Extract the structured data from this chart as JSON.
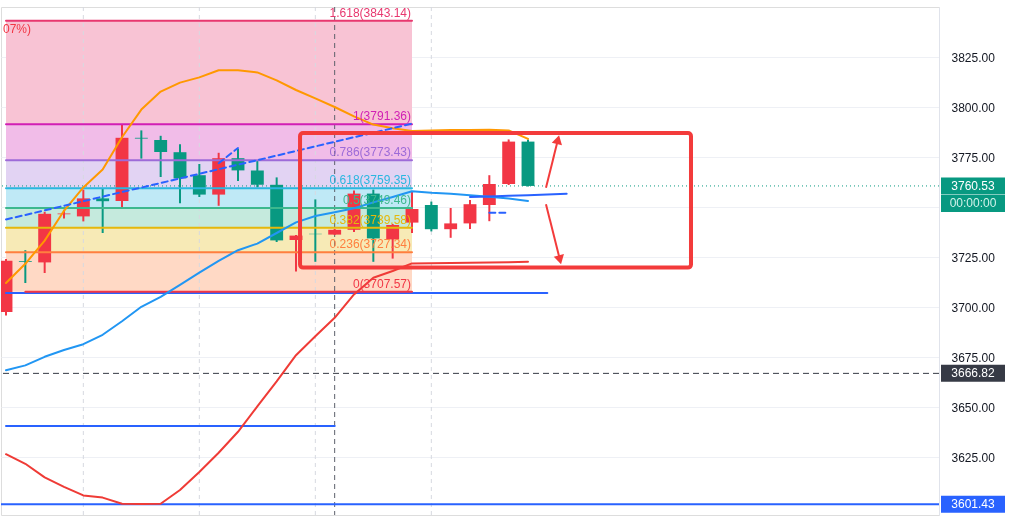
{
  "chart_data": {
    "type": "candlestick",
    "categories": [
      null,
      null,
      null,
      null,
      null,
      null,
      null,
      null,
      null,
      null,
      null,
      null,
      null,
      null,
      null,
      null,
      null,
      null,
      null,
      null,
      null,
      null,
      null,
      null,
      null,
      null,
      null,
      null,
      null,
      null,
      null,
      null,
      null,
      null,
      null,
      null,
      null,
      null,
      null,
      null,
      null,
      null,
      null,
      null,
      null,
      null,
      null,
      null,
      null
    ],
    "ohlc": [
      [
        3697.5,
        3724.0,
        3695.7,
        3723.1
      ],
      [
        3723.0,
        3728.4,
        3712.0,
        3722.6
      ],
      [
        3722.3,
        3747.6,
        3717.0,
        3746.6
      ],
      [
        3746.4,
        3748.6,
        3744.2,
        3746.8
      ],
      [
        3745.3,
        3758.7,
        3742.8,
        3754.3
      ],
      [
        3754.3,
        3759.1,
        3737.0,
        3752.9
      ],
      [
        3753.0,
        3791.36,
        3749.0,
        3784.6
      ],
      [
        3784.6,
        3788.3,
        3774.2,
        3784.2
      ],
      [
        3783.5,
        3785.6,
        3765.0,
        3777.5
      ],
      [
        3777.4,
        3781.4,
        3751.9,
        3764.3
      ],
      [
        3765.9,
        3771.5,
        3755.0,
        3756.2
      ],
      [
        3756.2,
        3777.1,
        3750.6,
        3774.4
      ],
      [
        3774.4,
        3779.0,
        3763.0,
        3768.3
      ],
      [
        3768.3,
        3773.1,
        3759.8,
        3761.1
      ],
      [
        3761.1,
        3764.8,
        3732.5,
        3733.3
      ],
      [
        3733.5,
        3736.0,
        3717.8,
        3735.7
      ],
      [
        3736.6,
        3753.8,
        3722.6,
        3736.4
      ],
      [
        3736.2,
        3739.0,
        3736.0,
        3738.6
      ],
      [
        3738.6,
        3758.2,
        3737.5,
        3756.7
      ],
      [
        3756.7,
        3758.7,
        3722.6,
        3734.3
      ],
      [
        3733.8,
        3741.5,
        3724.2,
        3741.0
      ],
      [
        3742.2,
        3757.8,
        3737.0,
        3749.0
      ],
      [
        3751.0,
        3752.7,
        3737.8,
        3738.9
      ],
      [
        3738.9,
        3749.5,
        3734.6,
        3741.8
      ],
      [
        3741.8,
        3753.5,
        3739.0,
        3751.4
      ],
      [
        3751.0,
        3765.9,
        3742.9,
        3761.5
      ],
      [
        3761.5,
        3783.8,
        3761.0,
        3782.7
      ],
      [
        3782.7,
        3783.8,
        3760.3,
        3760.53
      ],
      null,
      null,
      null,
      null,
      null,
      null,
      null,
      null,
      null,
      null,
      null,
      null,
      null,
      null,
      null,
      null,
      null,
      null,
      null,
      null,
      null
    ],
    "colors": [
      "#f23645",
      "#089981",
      "#f23645",
      "#f23645",
      "#f23645",
      "#089981",
      "#f23645",
      "#089981",
      "#089981",
      "#089981",
      "#089981",
      "#f23645",
      "#089981",
      "#089981",
      "#089981",
      "#f23645",
      "#089981",
      "#f23645",
      "#f23645",
      "#089981",
      "#f23645",
      "#f23645",
      "#089981",
      "#f23645",
      "#f23645",
      "#f23645",
      "#f23645",
      "#089981",
      null,
      null,
      null,
      null,
      null,
      null,
      null,
      null,
      null,
      null,
      null,
      null,
      null,
      null,
      null,
      null,
      null,
      null,
      null,
      null,
      null
    ],
    "ylim": [
      3596,
      3850
    ],
    "yticks": [
      {
        "value": 3625,
        "label": "3625.00"
      },
      {
        "value": 3650,
        "label": "3650.00"
      },
      {
        "value": 3675,
        "label": "3675.00"
      },
      {
        "value": 3700,
        "label": "3700.00"
      },
      {
        "value": 3725,
        "label": "3725.00"
      },
      {
        "value": 3750,
        "label": null
      },
      {
        "value": 3775,
        "label": "3775.00"
      },
      {
        "value": 3800,
        "label": "3800.00"
      },
      {
        "value": 3825,
        "label": "3825.00"
      }
    ],
    "grid": true,
    "tick_labels": "y",
    "series": [
      {
        "type": "line",
        "color": "#2962ff",
        "values": [
          3640.5,
          3640.5,
          3640.5,
          3640.5,
          3640.5,
          3640.5,
          3640.5,
          3640.5,
          3640.5,
          3640.5,
          3640.5,
          3640.5,
          3640.5,
          3640.5,
          3640.5,
          3640.5,
          3640.5,
          3640.5,
          null,
          null,
          null,
          null,
          null,
          null,
          null,
          null,
          null,
          null,
          null,
          null,
          null,
          null,
          null,
          null,
          null,
          null,
          null,
          null,
          null,
          null,
          null,
          null,
          null,
          null,
          null,
          null,
          null,
          null,
          null
        ]
      },
      {
        "type": "line",
        "color": "#2962ff",
        "values": [
          3707.0,
          3707.0,
          3707.0,
          3707.0,
          3707.0,
          3707.0,
          3707.0,
          3707.0,
          3707.0,
          3707.0,
          3707.0,
          3707.0,
          3707.0,
          3707.0,
          3707.0,
          3707.0,
          3707.0,
          3707.0,
          3707.0,
          3707.0,
          3707.0,
          3707.0,
          3707.0,
          3707.0,
          3707.0,
          3707.0,
          3707.0,
          3707.0,
          3707.0,
          null,
          null,
          null,
          null,
          null,
          null,
          null,
          null,
          null,
          null,
          null,
          null,
          null,
          null,
          null,
          null,
          null,
          null,
          null,
          null
        ]
      },
      {
        "type": "line",
        "name": "0(3707.57)",
        "color": "#f23645",
        "values": [
          null,
          3707.57,
          3707.57,
          3707.57,
          3707.57,
          3707.57,
          3707.57,
          3707.57,
          3707.57,
          3707.57,
          3707.57,
          3707.57,
          3707.57,
          3707.57,
          3707.57,
          3707.57,
          3707.57,
          3707.57,
          3707.57,
          3707.57,
          3707.57,
          3707.57,
          null,
          null,
          null,
          null,
          null,
          null,
          null,
          null,
          null,
          null,
          null,
          null,
          null,
          null,
          null,
          null,
          null,
          null,
          null,
          null,
          null,
          null,
          null,
          null,
          null,
          null,
          null
        ]
      },
      {
        "type": "line",
        "name": "0.236(3727.34)",
        "color": "#ff7f3f",
        "values": [
          3727.34,
          3727.34,
          3727.34,
          3727.34,
          3727.34,
          3727.34,
          3727.34,
          3727.34,
          3727.34,
          3727.34,
          3727.34,
          3727.34,
          3727.34,
          3727.34,
          3727.34,
          3727.34,
          3727.34,
          3727.34,
          3727.34,
          3727.34,
          3727.34,
          3727.34,
          null,
          null,
          null,
          null,
          null,
          null,
          null,
          null,
          null,
          null,
          null,
          null,
          null,
          null,
          null,
          null,
          null,
          null,
          null,
          null,
          null,
          null,
          null,
          null,
          null,
          null,
          null
        ],
        "lower": [
          3707.57,
          3707.57,
          3707.57,
          3707.57,
          3707.57,
          3707.57,
          3707.57,
          3707.57,
          3707.57,
          3707.57,
          3707.57,
          3707.57,
          3707.57,
          3707.57,
          3707.57,
          3707.57,
          3707.57,
          3707.57,
          3707.57,
          3707.57,
          3707.57,
          3707.57,
          null,
          null,
          null,
          null,
          null,
          null,
          null,
          null,
          null,
          null,
          null,
          null,
          null,
          null,
          null,
          null,
          null,
          null,
          null,
          null,
          null,
          null,
          null,
          null,
          null,
          null,
          null
        ],
        "upper": [
          3727.34,
          3727.34,
          3727.34,
          3727.34,
          3727.34,
          3727.34,
          3727.34,
          3727.34,
          3727.34,
          3727.34,
          3727.34,
          3727.34,
          3727.34,
          3727.34,
          3727.34,
          3727.34,
          3727.34,
          3727.34,
          3727.34,
          3727.34,
          3727.34,
          3727.34,
          null,
          null,
          null,
          null,
          null,
          null,
          null,
          null,
          null,
          null,
          null,
          null,
          null,
          null,
          null,
          null,
          null,
          null,
          null,
          null,
          null,
          null,
          null,
          null,
          null,
          null,
          null
        ]
      },
      {
        "type": "line",
        "name": "0.382(3739.58)",
        "color": "#e5b80b",
        "values": [
          3739.58,
          3739.58,
          3739.58,
          3739.58,
          3739.58,
          3739.58,
          3739.58,
          3739.58,
          3739.58,
          3739.58,
          3739.58,
          3739.58,
          3739.58,
          3739.58,
          3739.58,
          3739.58,
          3739.58,
          3739.58,
          3739.58,
          3739.58,
          3739.58,
          3739.58,
          null,
          null,
          null,
          null,
          null,
          null,
          null,
          null,
          null,
          null,
          null,
          null,
          null,
          null,
          null,
          null,
          null,
          null,
          null,
          null,
          null,
          null,
          null,
          null,
          null,
          null,
          null
        ],
        "lower": [
          3727.34,
          3727.34,
          3727.34,
          3727.34,
          3727.34,
          3727.34,
          3727.34,
          3727.34,
          3727.34,
          3727.34,
          3727.34,
          3727.34,
          3727.34,
          3727.34,
          3727.34,
          3727.34,
          3727.34,
          3727.34,
          3727.34,
          3727.34,
          3727.34,
          3727.34,
          null,
          null,
          null,
          null,
          null,
          null,
          null,
          null,
          null,
          null,
          null,
          null,
          null,
          null,
          null,
          null,
          null,
          null,
          null,
          null,
          null,
          null,
          null,
          null,
          null,
          null,
          null
        ],
        "upper": [
          3739.58,
          3739.58,
          3739.58,
          3739.58,
          3739.58,
          3739.58,
          3739.58,
          3739.58,
          3739.58,
          3739.58,
          3739.58,
          3739.58,
          3739.58,
          3739.58,
          3739.58,
          3739.58,
          3739.58,
          3739.58,
          3739.58,
          3739.58,
          3739.58,
          3739.58,
          null,
          null,
          null,
          null,
          null,
          null,
          null,
          null,
          null,
          null,
          null,
          null,
          null,
          null,
          null,
          null,
          null,
          null,
          null,
          null,
          null,
          null,
          null,
          null,
          null,
          null,
          null
        ]
      },
      {
        "type": "line",
        "name": "0.5(3749.46)",
        "color": "#3db88e",
        "values": [
          3749.46,
          3749.46,
          3749.46,
          3749.46,
          3749.46,
          3749.46,
          3749.46,
          3749.46,
          3749.46,
          3749.46,
          3749.46,
          3749.46,
          3749.46,
          3749.46,
          3749.46,
          3749.46,
          3749.46,
          3749.46,
          3749.46,
          3749.46,
          3749.46,
          3749.46,
          null,
          null,
          null,
          null,
          null,
          null,
          null,
          null,
          null,
          null,
          null,
          null,
          null,
          null,
          null,
          null,
          null,
          null,
          null,
          null,
          null,
          null,
          null,
          null,
          null,
          null,
          null
        ],
        "lower": [
          3739.58,
          3739.58,
          3739.58,
          3739.58,
          3739.58,
          3739.58,
          3739.58,
          3739.58,
          3739.58,
          3739.58,
          3739.58,
          3739.58,
          3739.58,
          3739.58,
          3739.58,
          3739.58,
          3739.58,
          3739.58,
          3739.58,
          3739.58,
          3739.58,
          3739.58,
          null,
          null,
          null,
          null,
          null,
          null,
          null,
          null,
          null,
          null,
          null,
          null,
          null,
          null,
          null,
          null,
          null,
          null,
          null,
          null,
          null,
          null,
          null,
          null,
          null,
          null,
          null
        ],
        "upper": [
          3749.46,
          3749.46,
          3749.46,
          3749.46,
          3749.46,
          3749.46,
          3749.46,
          3749.46,
          3749.46,
          3749.46,
          3749.46,
          3749.46,
          3749.46,
          3749.46,
          3749.46,
          3749.46,
          3749.46,
          3749.46,
          3749.46,
          3749.46,
          3749.46,
          3749.46,
          null,
          null,
          null,
          null,
          null,
          null,
          null,
          null,
          null,
          null,
          null,
          null,
          null,
          null,
          null,
          null,
          null,
          null,
          null,
          null,
          null,
          null,
          null,
          null,
          null,
          null,
          null
        ]
      },
      {
        "type": "line",
        "name": "0.618(3759.35)",
        "color": "#2ab7e0",
        "values": [
          3759.35,
          3759.35,
          3759.35,
          3759.35,
          3759.35,
          3759.35,
          3759.35,
          3759.35,
          3759.35,
          3759.35,
          3759.35,
          3759.35,
          3759.35,
          3759.35,
          3759.35,
          3759.35,
          3759.35,
          3759.35,
          3759.35,
          3759.35,
          3759.35,
          3759.35,
          null,
          null,
          null,
          null,
          null,
          null,
          null,
          null,
          null,
          null,
          null,
          null,
          null,
          null,
          null,
          null,
          null,
          null,
          null,
          null,
          null,
          null,
          null,
          null,
          null,
          null,
          null
        ],
        "lower": [
          3749.46,
          3749.46,
          3749.46,
          3749.46,
          3749.46,
          3749.46,
          3749.46,
          3749.46,
          3749.46,
          3749.46,
          3749.46,
          3749.46,
          3749.46,
          3749.46,
          3749.46,
          3749.46,
          3749.46,
          3749.46,
          3749.46,
          3749.46,
          3749.46,
          3749.46,
          null,
          null,
          null,
          null,
          null,
          null,
          null,
          null,
          null,
          null,
          null,
          null,
          null,
          null,
          null,
          null,
          null,
          null,
          null,
          null,
          null,
          null,
          null,
          null,
          null,
          null,
          null
        ],
        "upper": [
          3759.35,
          3759.35,
          3759.35,
          3759.35,
          3759.35,
          3759.35,
          3759.35,
          3759.35,
          3759.35,
          3759.35,
          3759.35,
          3759.35,
          3759.35,
          3759.35,
          3759.35,
          3759.35,
          3759.35,
          3759.35,
          3759.35,
          3759.35,
          3759.35,
          3759.35,
          null,
          null,
          null,
          null,
          null,
          null,
          null,
          null,
          null,
          null,
          null,
          null,
          null,
          null,
          null,
          null,
          null,
          null,
          null,
          null,
          null,
          null,
          null,
          null,
          null,
          null,
          null
        ]
      },
      {
        "type": "line",
        "name": "0.786(3773.43)",
        "color": "#9d6bd8",
        "values": [
          3773.43,
          3773.43,
          3773.43,
          3773.43,
          3773.43,
          3773.43,
          3773.43,
          3773.43,
          3773.43,
          3773.43,
          3773.43,
          3773.43,
          3773.43,
          3773.43,
          3773.43,
          3773.43,
          3773.43,
          3773.43,
          3773.43,
          3773.43,
          3773.43,
          3773.43,
          null,
          null,
          null,
          null,
          null,
          null,
          null,
          null,
          null,
          null,
          null,
          null,
          null,
          null,
          null,
          null,
          null,
          null,
          null,
          null,
          null,
          null,
          null,
          null,
          null,
          null,
          null
        ],
        "lower": [
          3759.35,
          3759.35,
          3759.35,
          3759.35,
          3759.35,
          3759.35,
          3759.35,
          3759.35,
          3759.35,
          3759.35,
          3759.35,
          3759.35,
          3759.35,
          3759.35,
          3759.35,
          3759.35,
          3759.35,
          3759.35,
          3759.35,
          3759.35,
          3759.35,
          3759.35,
          null,
          null,
          null,
          null,
          null,
          null,
          null,
          null,
          null,
          null,
          null,
          null,
          null,
          null,
          null,
          null,
          null,
          null,
          null,
          null,
          null,
          null,
          null,
          null,
          null,
          null,
          null
        ],
        "upper": [
          3773.43,
          3773.43,
          3773.43,
          3773.43,
          3773.43,
          3773.43,
          3773.43,
          3773.43,
          3773.43,
          3773.43,
          3773.43,
          3773.43,
          3773.43,
          3773.43,
          3773.43,
          3773.43,
          3773.43,
          3773.43,
          3773.43,
          3773.43,
          3773.43,
          3773.43,
          null,
          null,
          null,
          null,
          null,
          null,
          null,
          null,
          null,
          null,
          null,
          null,
          null,
          null,
          null,
          null,
          null,
          null,
          null,
          null,
          null,
          null,
          null,
          null,
          null,
          null,
          null
        ]
      },
      {
        "type": "line",
        "name": "1(3791.36)",
        "color": "#d11fb4",
        "values": [
          3791.36,
          3791.36,
          3791.36,
          3791.36,
          3791.36,
          3791.36,
          3791.36,
          3791.36,
          3791.36,
          3791.36,
          3791.36,
          3791.36,
          3791.36,
          3791.36,
          3791.36,
          3791.36,
          3791.36,
          3791.36,
          3791.36,
          3791.36,
          3791.36,
          3791.36,
          null,
          null,
          null,
          null,
          null,
          null,
          null,
          null,
          null,
          null,
          null,
          null,
          null,
          null,
          null,
          null,
          null,
          null,
          null,
          null,
          null,
          null,
          null,
          null,
          null,
          null,
          null
        ],
        "lower": [
          3773.43,
          3773.43,
          3773.43,
          3773.43,
          3773.43,
          3773.43,
          3773.43,
          3773.43,
          3773.43,
          3773.43,
          3773.43,
          3773.43,
          3773.43,
          3773.43,
          3773.43,
          3773.43,
          3773.43,
          3773.43,
          3773.43,
          3773.43,
          3773.43,
          3773.43,
          null,
          null,
          null,
          null,
          null,
          null,
          null,
          null,
          null,
          null,
          null,
          null,
          null,
          null,
          null,
          null,
          null,
          null,
          null,
          null,
          null,
          null,
          null,
          null,
          null,
          null,
          null
        ],
        "upper": [
          3791.36,
          3791.36,
          3791.36,
          3791.36,
          3791.36,
          3791.36,
          3791.36,
          3791.36,
          3791.36,
          3791.36,
          3791.36,
          3791.36,
          3791.36,
          3791.36,
          3791.36,
          3791.36,
          3791.36,
          3791.36,
          3791.36,
          3791.36,
          3791.36,
          3791.36,
          null,
          null,
          null,
          null,
          null,
          null,
          null,
          null,
          null,
          null,
          null,
          null,
          null,
          null,
          null,
          null,
          null,
          null,
          null,
          null,
          null,
          null,
          null,
          null,
          null,
          null,
          null
        ]
      },
      {
        "type": "line",
        "name": "1.618(3843.14)",
        "color": "#e8386f",
        "values": [
          3843.14,
          3843.14,
          3843.14,
          3843.14,
          3843.14,
          3843.14,
          3843.14,
          3843.14,
          3843.14,
          3843.14,
          3843.14,
          3843.14,
          3843.14,
          3843.14,
          3843.14,
          3843.14,
          3843.14,
          3843.14,
          3843.14,
          3843.14,
          3843.14,
          3843.14,
          null,
          null,
          null,
          null,
          null,
          null,
          null,
          null,
          null,
          null,
          null,
          null,
          null,
          null,
          null,
          null,
          null,
          null,
          null,
          null,
          null,
          null,
          null,
          null,
          null,
          null,
          null
        ],
        "lower": [
          3791.36,
          3791.36,
          3791.36,
          3791.36,
          3791.36,
          3791.36,
          3791.36,
          3791.36,
          3791.36,
          3791.36,
          3791.36,
          3791.36,
          3791.36,
          3791.36,
          3791.36,
          3791.36,
          3791.36,
          3791.36,
          3791.36,
          3791.36,
          3791.36,
          3791.36,
          null,
          null,
          null,
          null,
          null,
          null,
          null,
          null,
          null,
          null,
          null,
          null,
          null,
          null,
          null,
          null,
          null,
          null,
          null,
          null,
          null,
          null,
          null,
          null,
          null,
          null,
          null
        ],
        "upper": [
          3843.14,
          3843.14,
          3843.14,
          3843.14,
          3843.14,
          3843.14,
          3843.14,
          3843.14,
          3843.14,
          3843.14,
          3843.14,
          3843.14,
          3843.14,
          3843.14,
          3843.14,
          3843.14,
          3843.14,
          3843.14,
          3843.14,
          3843.14,
          3843.14,
          3843.14,
          null,
          null,
          null,
          null,
          null,
          null,
          null,
          null,
          null,
          null,
          null,
          null,
          null,
          null,
          null,
          null,
          null,
          null,
          null,
          null,
          null,
          null,
          null,
          null,
          null,
          null,
          null
        ]
      },
      {
        "type": "line",
        "color": "#ff9800",
        "values": [
          3712.0,
          3721.6,
          3733.2,
          3748.1,
          3759.8,
          3768.7,
          3784.9,
          3798.7,
          3807.7,
          3812.2,
          3814.8,
          3818.4,
          3818.4,
          3817.3,
          3813.3,
          3808.5,
          3804.3,
          3800.0,
          3795.3,
          3791.2,
          3789.4,
          3788.0,
          3788.3,
          3788.5,
          3788.5,
          3788.6,
          3788.3,
          3784.1,
          null,
          null,
          null,
          null,
          null,
          null,
          null,
          null,
          null,
          null,
          null,
          null,
          null,
          null,
          null,
          null,
          null,
          null,
          null,
          null,
          null
        ]
      },
      {
        "type": "line",
        "color": "#2196f3",
        "values": [
          3668.4,
          3670.8,
          3675.1,
          3678.5,
          3681.4,
          3686.1,
          3692.9,
          3700.1,
          3705.1,
          3711.1,
          3717.2,
          3723.1,
          3728.4,
          3731.7,
          3737.0,
          3742.3,
          3745.5,
          3747.4,
          3749.4,
          3752.3,
          3755.0,
          3757.9,
          3757.1,
          3756.6,
          3755.9,
          3755.1,
          3754.2,
          3753.0,
          null,
          null,
          null,
          null,
          null,
          null,
          null,
          null,
          null,
          null,
          null,
          null,
          null,
          null,
          null,
          null,
          null,
          null,
          null,
          null,
          null
        ]
      },
      {
        "type": "line",
        "color": "#ef3b36",
        "values": [
          3626.4,
          3621.6,
          3614.8,
          3610.1,
          3605.8,
          3604.7,
          3601.6,
          3601.5,
          3601.6,
          3608.5,
          3617.5,
          3627.1,
          3637.6,
          3650.3,
          3662.8,
          3675.9,
          3685.4,
          3694.6,
          3706.3,
          3714.6,
          3718.0,
          3721.8,
          3721.9,
          3722.0,
          3722.1,
          3722.3,
          3722.4,
          3722.6,
          null,
          null,
          null,
          null,
          null,
          null,
          null,
          null,
          null,
          null,
          null,
          null,
          null,
          null,
          null,
          null,
          null,
          null,
          null,
          null,
          null
        ]
      },
      {
        "type": "line",
        "color": "#2962ff",
        "line_style": "dashed",
        "values": [
          3743.8,
          3746.0,
          3748.3,
          3750.6,
          3752.9,
          3755.2,
          3757.5,
          3759.7,
          3762.0,
          3764.3,
          3766.6,
          3768.9,
          3771.2,
          3773.4,
          3775.7,
          3778.0,
          3780.3,
          3782.6,
          3784.9,
          3787.1,
          3789.4,
          3791.7,
          null,
          null,
          null,
          null,
          null,
          null,
          null,
          null,
          null,
          null,
          null,
          null,
          null,
          null,
          null,
          null,
          null,
          null,
          null,
          null,
          null,
          null,
          null,
          null,
          null,
          null,
          null
        ]
      },
      {
        "type": "line",
        "color": "#2962ff",
        "line_style": "dashed",
        "values": [
          null,
          null,
          null,
          null,
          null,
          null,
          null,
          null,
          null,
          null,
          null,
          3771.9,
          3779.5,
          null,
          null,
          null,
          null,
          null,
          null,
          null,
          null,
          null,
          null,
          null,
          null,
          null,
          null,
          null,
          null,
          null,
          null,
          null,
          null,
          null,
          null,
          null,
          null,
          null,
          null,
          null,
          null,
          null,
          null,
          null,
          null,
          null,
          null,
          null,
          null
        ]
      },
      {
        "type": "line",
        "color": "#2962ff",
        "line_style": "dashed",
        "values": [
          null,
          null,
          null,
          null,
          null,
          null,
          null,
          null,
          null,
          null,
          null,
          null,
          null,
          null,
          null,
          null,
          null,
          null,
          null,
          null,
          null,
          null,
          null,
          null,
          null,
          3747.1,
          3747.1,
          null,
          null,
          null,
          null,
          null,
          null,
          null,
          null,
          null,
          null,
          null,
          null,
          null,
          null,
          null,
          null,
          null,
          null,
          null,
          null,
          null,
          null
        ]
      },
      {
        "type": "line",
        "color": "#2962ff",
        "values": [
          null,
          null,
          null,
          null,
          null,
          null,
          null,
          null,
          null,
          null,
          null,
          null,
          null,
          null,
          null,
          null,
          null,
          null,
          null,
          null,
          null,
          null,
          null,
          null,
          3755.0,
          3755.3,
          3755.6,
          3755.9,
          3756.3,
          3756.6,
          null,
          null,
          null,
          null,
          null,
          null,
          null,
          null,
          null,
          null,
          null,
          null,
          null,
          null,
          null,
          null,
          null,
          null,
          null
        ]
      }
    ],
    "ref_lines": [
      {
        "axis": "y",
        "value": 3760.53,
        "label": "3760.53",
        "color": "#089981",
        "line_style": "dotted"
      },
      {
        "axis": "y",
        "value": 3666.82,
        "label": "3666.82",
        "color": "#363a45",
        "line_style": "dashed"
      },
      {
        "axis": "y",
        "value": 3601.43,
        "label": "3601.43",
        "color": "#2962ff",
        "line_style": "solid"
      }
    ],
    "annotations": [
      "07%)",
      "00:00:00"
    ]
  }
}
